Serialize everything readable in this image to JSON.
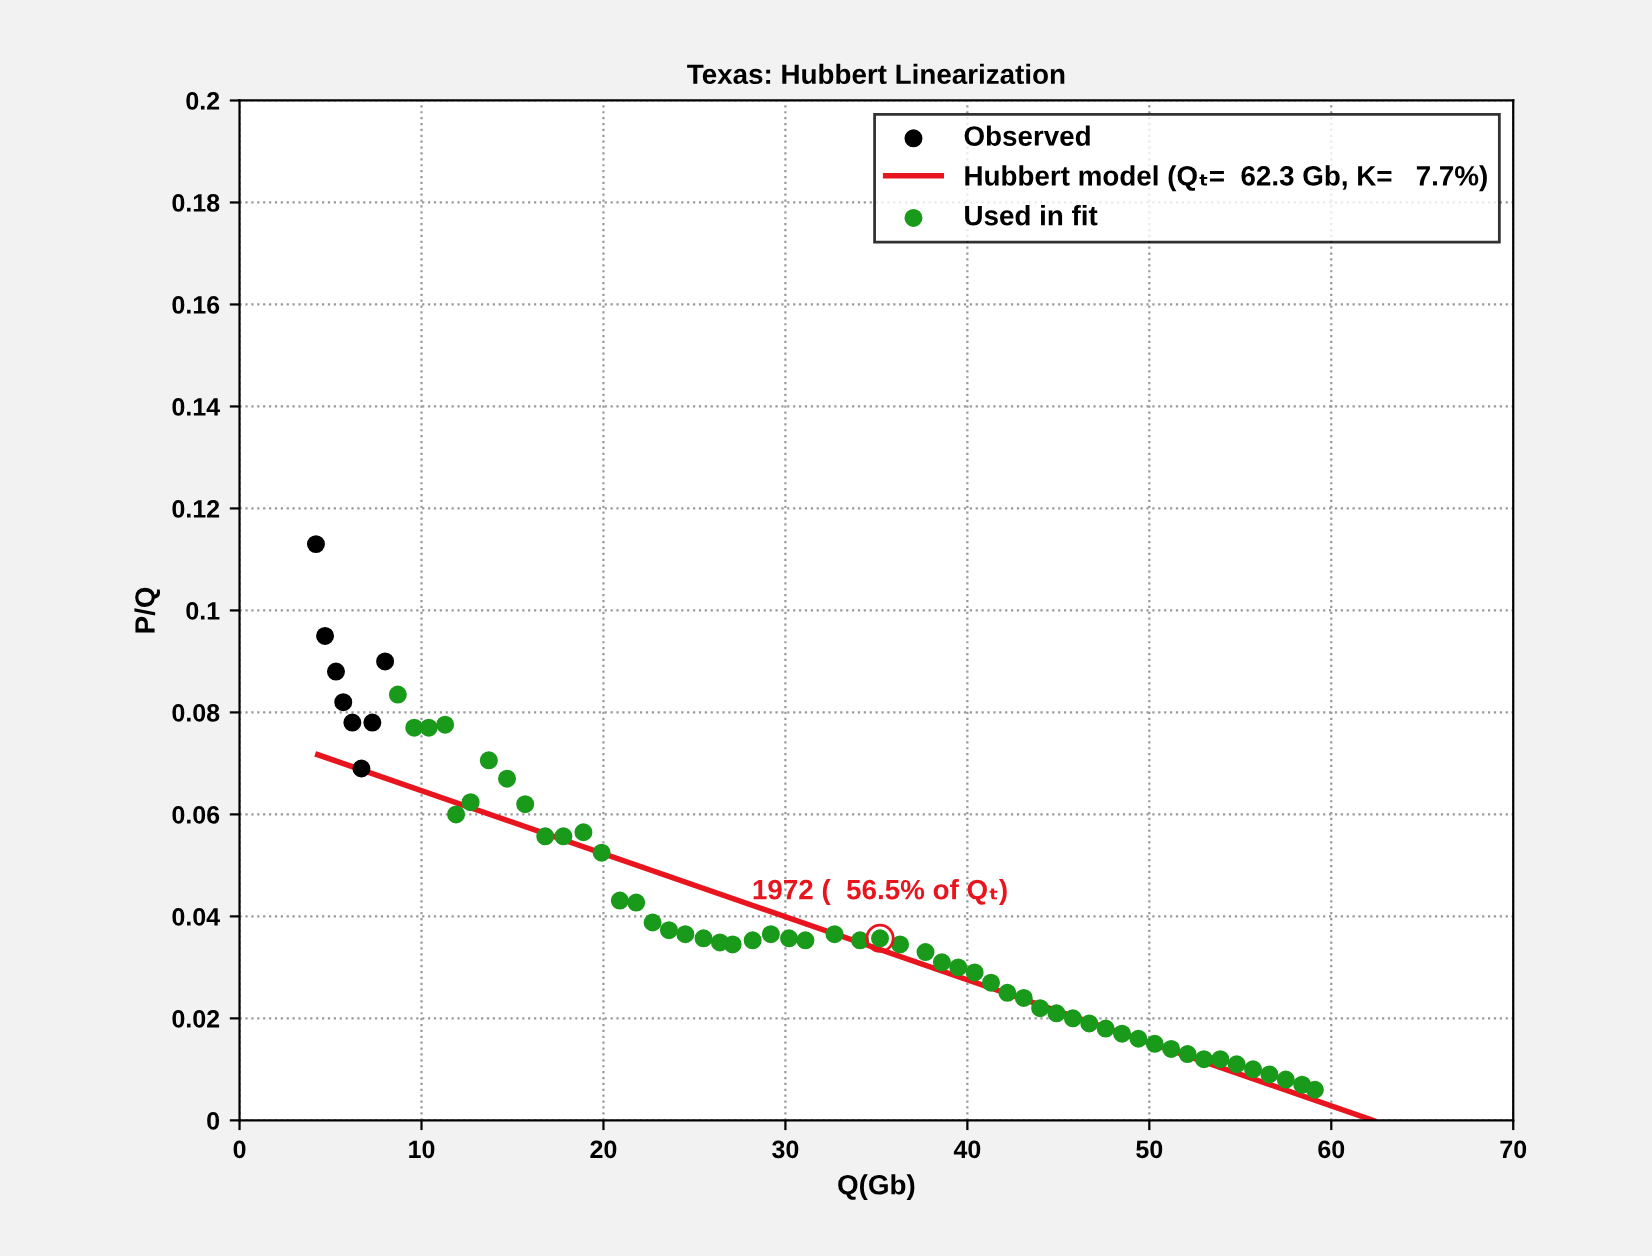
{
  "chart_data": {
    "type": "scatter",
    "title": "Texas: Hubbert Linearization",
    "xlabel": "Q(Gb)",
    "ylabel": "P/Q",
    "xlim": [
      0,
      70
    ],
    "xticks": [
      0,
      10,
      20,
      30,
      40,
      50,
      60,
      70
    ],
    "ylim": [
      0,
      0.2
    ],
    "yticks": [
      0,
      0.02,
      0.04,
      0.06,
      0.08,
      0.1,
      0.12,
      0.14,
      0.16,
      0.18,
      0.2
    ],
    "grid": true,
    "legend": "top right",
    "series": [
      {
        "name": "Observed",
        "marker": "circle",
        "color": "#000000",
        "x": [
          4.2,
          4.7,
          5.3,
          5.7,
          6.2,
          6.7,
          7.3,
          8.0
        ],
        "values": [
          0.113,
          0.095,
          0.088,
          0.082,
          0.078,
          0.069,
          0.078,
          0.09
        ]
      },
      {
        "name": "Hubbert model (Qₜ=  62.3 Gb, K=   7.7%)",
        "type": "line",
        "color": "#e8141e",
        "x": [
          4.3,
          62.3
        ],
        "values": [
          0.0717,
          0
        ]
      },
      {
        "name": "Used in fit",
        "marker": "circle",
        "color": "#1a9a1a",
        "x": [
          8.7,
          9.6,
          10.4,
          11.3,
          11.9,
          12.7,
          13.7,
          14.7,
          15.7,
          16.8,
          17.8,
          18.9,
          19.9,
          20.9,
          21.8,
          22.7,
          23.6,
          24.5,
          25.5,
          26.4,
          27.1,
          28.2,
          29.2,
          30.2,
          31.1,
          32.7,
          34.1,
          35.2,
          36.3,
          37.7,
          38.6,
          39.5,
          40.4,
          41.3,
          42.2,
          43.1,
          44.0,
          44.9,
          45.8,
          46.7,
          47.6,
          48.5,
          49.4,
          50.3,
          51.2,
          52.1,
          53.0,
          53.9,
          54.8,
          55.7,
          56.6,
          57.5,
          58.4,
          59.1
        ],
        "values": [
          0.0835,
          0.077,
          0.077,
          0.0776,
          0.06,
          0.0624,
          0.0706,
          0.067,
          0.062,
          0.0557,
          0.0557,
          0.0565,
          0.0525,
          0.0431,
          0.0427,
          0.0388,
          0.0373,
          0.0365,
          0.0357,
          0.0349,
          0.0345,
          0.0353,
          0.0365,
          0.0357,
          0.0353,
          0.0365,
          0.0353,
          0.0357,
          0.0345,
          0.033,
          0.031,
          0.03,
          0.029,
          0.027,
          0.025,
          0.024,
          0.022,
          0.021,
          0.02,
          0.019,
          0.018,
          0.017,
          0.016,
          0.015,
          0.014,
          0.013,
          0.012,
          0.012,
          0.011,
          0.01,
          0.009,
          0.008,
          0.007,
          0.006
        ]
      }
    ],
    "annotations": [
      {
        "text": "1972 (  56.5% of Qₜ)",
        "x": 35.2,
        "y": 0.0357
      }
    ]
  }
}
